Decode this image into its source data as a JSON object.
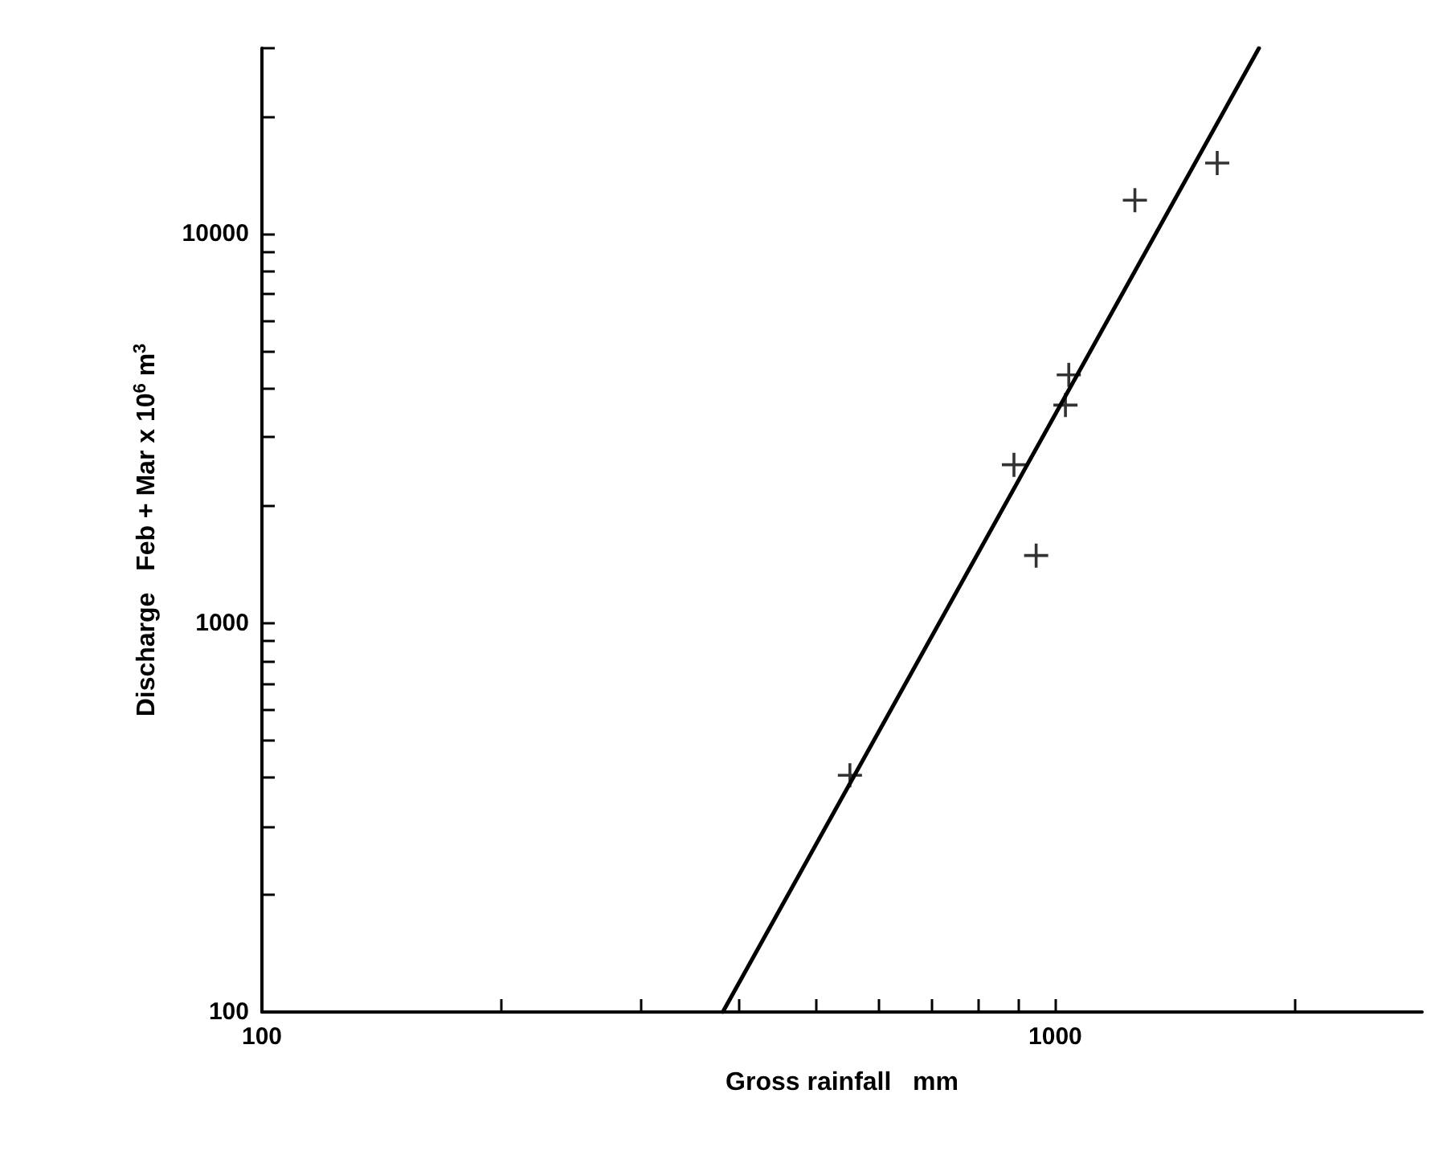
{
  "chart_data": {
    "type": "scatter",
    "xlabel": "Gross rainfall   mm",
    "ylabel": "Discharge   Feb + Mar x 10$^{6}$ m$^{3}$",
    "log": "xy",
    "grid": false,
    "xlim": [
      100,
      2900
    ],
    "ylim": [
      100,
      30000
    ],
    "xticks": [
      100,
      {
        "value": 200,
        "label": null
      },
      {
        "value": 300,
        "label": null
      },
      {
        "value": 400,
        "label": null
      },
      {
        "value": 500,
        "label": null
      },
      {
        "value": 600,
        "label": null
      },
      {
        "value": 700,
        "label": null
      },
      {
        "value": 800,
        "label": null
      },
      {
        "value": 900,
        "label": null
      },
      1000,
      {
        "value": 2000,
        "label": null
      }
    ],
    "yticks": [
      100,
      {
        "value": 200,
        "label": null
      },
      {
        "value": 300,
        "label": null
      },
      {
        "value": 400,
        "label": null
      },
      {
        "value": 500,
        "label": null
      },
      {
        "value": 600,
        "label": null
      },
      {
        "value": 700,
        "label": null
      },
      {
        "value": 800,
        "label": null
      },
      {
        "value": 900,
        "label": null
      },
      1000,
      {
        "value": 2000,
        "label": null
      },
      {
        "value": 3000,
        "label": null
      },
      {
        "value": 4000,
        "label": null
      },
      {
        "value": 5000,
        "label": null
      },
      {
        "value": 6000,
        "label": null
      },
      {
        "value": 7000,
        "label": null
      },
      {
        "value": 8000,
        "label": null
      },
      {
        "value": 9000,
        "label": null
      },
      10000,
      {
        "value": 20000,
        "label": null
      },
      {
        "value": 30000,
        "label": null
      }
    ],
    "series": [
      {
        "color": "#000000",
        "marker": "cross",
        "x": [
          551,
          946,
          887,
          1030,
          1040,
          1260,
          1600
        ],
        "values": [
          406,
          1490,
          2550,
          3630,
          4340,
          12200,
          15200
        ]
      },
      {
        "type": "line",
        "color": "#000000",
        "marker": "none",
        "line_style": "solid",
        "x": [
          381,
          1806
        ],
        "values": [
          100,
          30000
        ]
      }
    ]
  }
}
